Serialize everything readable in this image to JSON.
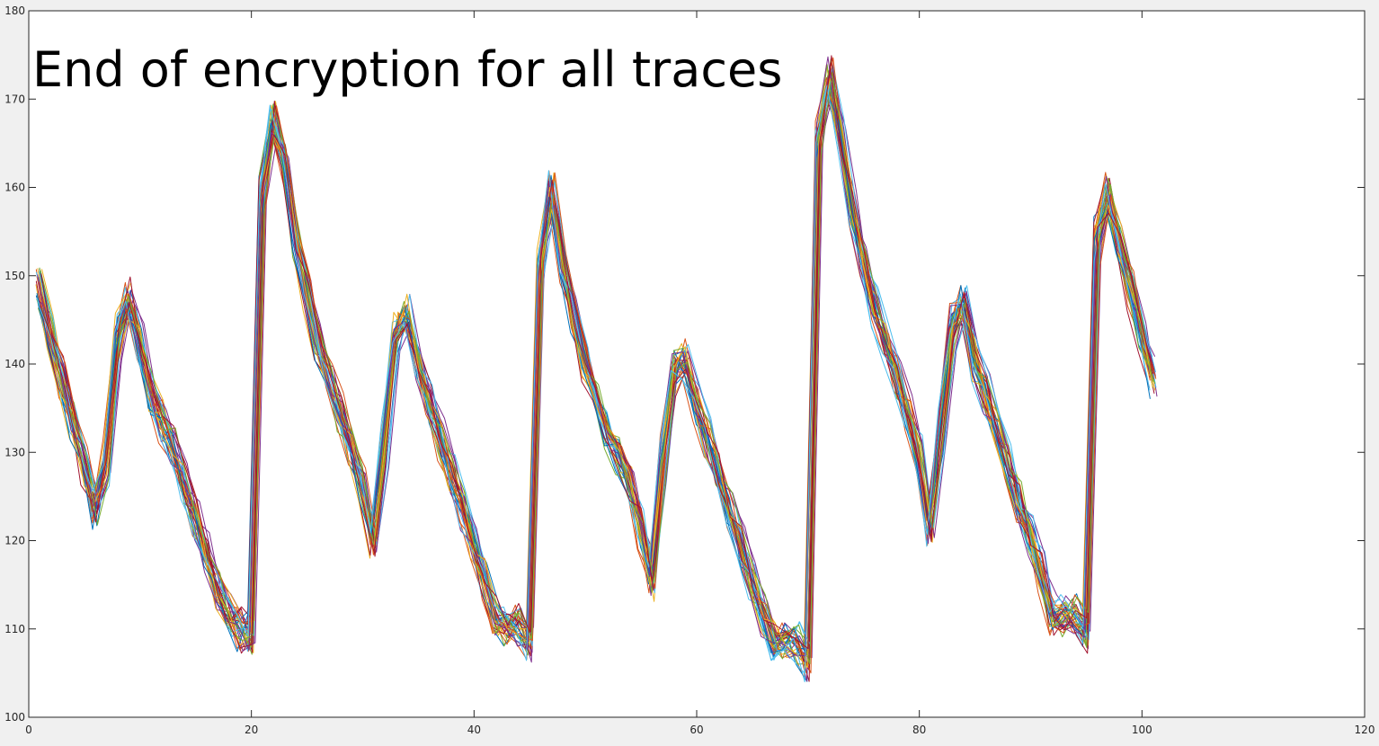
{
  "chart_data": {
    "type": "line",
    "title": "End of encryption for all traces",
    "xlabel": "",
    "ylabel": "",
    "xlim": [
      0,
      120
    ],
    "ylim": [
      100,
      180
    ],
    "x_ticks": [
      0,
      20,
      40,
      60,
      80,
      100,
      120
    ],
    "y_ticks": [
      100,
      110,
      120,
      130,
      140,
      150,
      160,
      170,
      180
    ],
    "grid": false,
    "legend": "none",
    "x": [
      1,
      2,
      3,
      4,
      5,
      6,
      7,
      8,
      9,
      10,
      11,
      12,
      13,
      14,
      15,
      16,
      17,
      18,
      19,
      20,
      21,
      22,
      23,
      24,
      25,
      26,
      27,
      28,
      29,
      30,
      31,
      32,
      33,
      34,
      35,
      36,
      37,
      38,
      39,
      40,
      41,
      42,
      43,
      44,
      45,
      46,
      47,
      48,
      49,
      50,
      51,
      52,
      53,
      54,
      55,
      56,
      57,
      58,
      59,
      60,
      61,
      62,
      63,
      64,
      65,
      66,
      67,
      68,
      69,
      70,
      71,
      72,
      73,
      74,
      75,
      76,
      77,
      78,
      79,
      80,
      81,
      82,
      83,
      84,
      85,
      86,
      87,
      88,
      89,
      90,
      91,
      92,
      93,
      94,
      95,
      96,
      97,
      98,
      99,
      100,
      101
    ],
    "series_colors": [
      "#0072BD",
      "#D95319",
      "#EDB120",
      "#7E2F8E",
      "#77AC30",
      "#4DBEEE",
      "#A2142F"
    ],
    "trace_count": 35,
    "series": [
      {
        "values": [
          148,
          143,
          138,
          133,
          128,
          123,
          128,
          142,
          147,
          143,
          137,
          134,
          131,
          127,
          123,
          119,
          115,
          111,
          109,
          110,
          160,
          167,
          162,
          154,
          148,
          142,
          138,
          134,
          130,
          126,
          120,
          130,
          142,
          146,
          141,
          136,
          132,
          128,
          124,
          120,
          116,
          112,
          110,
          111,
          109,
          152,
          159,
          151,
          145,
          140,
          136,
          132,
          129,
          126,
          122,
          116,
          128,
          138,
          141,
          136,
          132,
          128,
          124,
          120,
          116,
          112,
          109,
          108,
          109,
          107,
          165,
          172,
          166,
          158,
          152,
          147,
          143,
          139,
          135,
          130,
          122,
          131,
          143,
          147,
          141,
          137,
          133,
          129,
          125,
          121,
          117,
          112,
          111,
          112,
          110,
          155,
          159,
          153,
          148,
          143,
          138
        ]
      },
      {
        "values": [
          149,
          144,
          139,
          134,
          129,
          124,
          130,
          144,
          148,
          142,
          136,
          133,
          130,
          126,
          122,
          118,
          114,
          112,
          111,
          109,
          158,
          168,
          163,
          155,
          149,
          143,
          139,
          135,
          131,
          127,
          121,
          132,
          144,
          145,
          140,
          135,
          131,
          127,
          123,
          119,
          115,
          111,
          111,
          110,
          108,
          150,
          160,
          152,
          146,
          141,
          137,
          133,
          130,
          127,
          121,
          115,
          130,
          140,
          140,
          135,
          131,
          127,
          123,
          119,
          115,
          111,
          108,
          109,
          108,
          106,
          166,
          173,
          165,
          157,
          151,
          146,
          142,
          138,
          134,
          129,
          121,
          133,
          145,
          146,
          140,
          136,
          132,
          128,
          124,
          120,
          116,
          111,
          112,
          111,
          109,
          153,
          160,
          154,
          149,
          144,
          139
        ]
      }
    ]
  }
}
